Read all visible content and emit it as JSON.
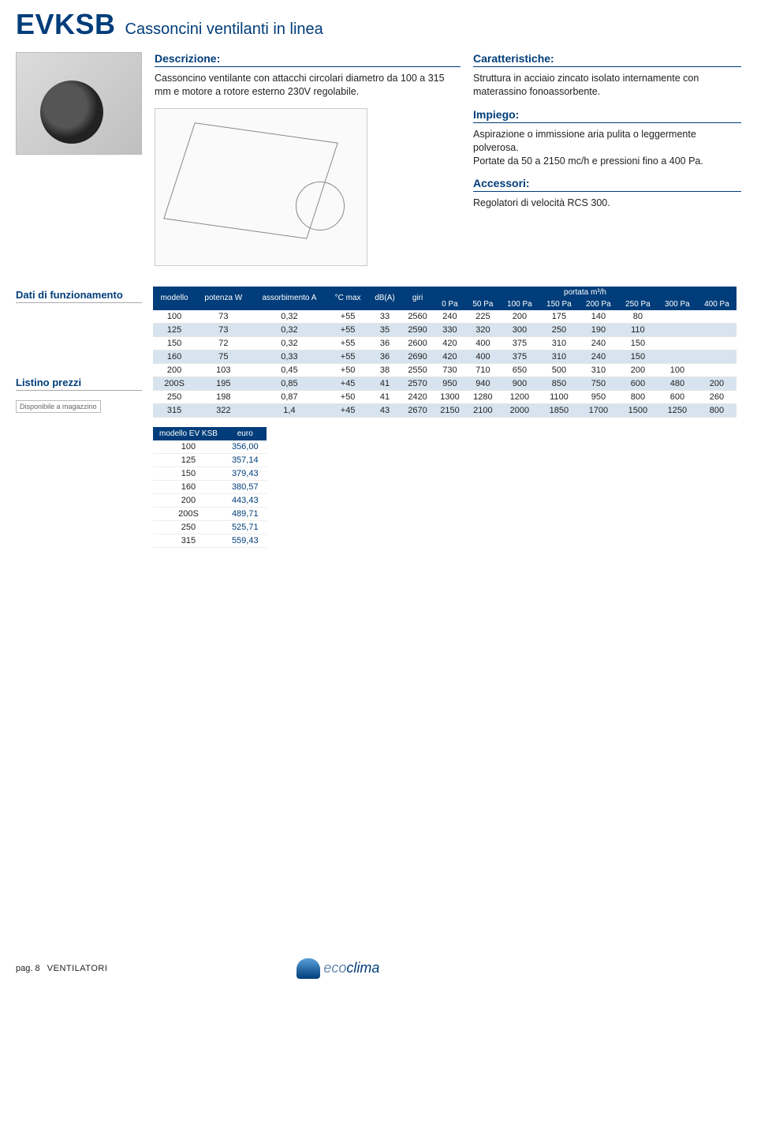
{
  "header": {
    "code": "EVKSB",
    "name": "Cassoncini ventilanti in linea"
  },
  "descrizione": {
    "title": "Descrizione:",
    "body": "Cassoncino ventilante con attacchi circolari diametro da 100 a 315 mm e motore a rotore esterno 230V regolabile."
  },
  "caratteristiche": {
    "title": "Caratteristiche:",
    "body": "Struttura in acciaio zincato isolato internamente con materassino fonoassorbente."
  },
  "impiego": {
    "title": "Impiego:",
    "body": "Aspirazione o immissione aria pulita o leggermente polverosa.\nPortate da 50 a 2150 mc/h e pressioni fino a 400 Pa."
  },
  "accessori": {
    "title": "Accessori:",
    "body": "Regolatori di velocità RCS 300."
  },
  "dati_heading": "Dati di funzionamento",
  "listino_heading": "Listino prezzi",
  "avail_label": "Disponibile a magazzino",
  "table1": {
    "head_top": [
      "modello",
      "potenza W",
      "assorbimento A",
      "°C max",
      "dB(A)",
      "giri",
      "portata m³/h"
    ],
    "head_portata": [
      "0 Pa",
      "50 Pa",
      "100 Pa",
      "150 Pa",
      "200 Pa",
      "250 Pa",
      "300 Pa",
      "400 Pa"
    ],
    "rows": [
      [
        "100",
        "73",
        "0,32",
        "+55",
        "33",
        "2560",
        "240",
        "225",
        "200",
        "175",
        "140",
        "80",
        "",
        ""
      ],
      [
        "125",
        "73",
        "0,32",
        "+55",
        "35",
        "2590",
        "330",
        "320",
        "300",
        "250",
        "190",
        "110",
        "",
        ""
      ],
      [
        "150",
        "72",
        "0,32",
        "+55",
        "36",
        "2600",
        "420",
        "400",
        "375",
        "310",
        "240",
        "150",
        "",
        ""
      ],
      [
        "160",
        "75",
        "0,33",
        "+55",
        "36",
        "2690",
        "420",
        "400",
        "375",
        "310",
        "240",
        "150",
        "",
        ""
      ],
      [
        "200",
        "103",
        "0,45",
        "+50",
        "38",
        "2550",
        "730",
        "710",
        "650",
        "500",
        "310",
        "200",
        "100",
        ""
      ],
      [
        "200S",
        "195",
        "0,85",
        "+45",
        "41",
        "2570",
        "950",
        "940",
        "900",
        "850",
        "750",
        "600",
        "480",
        "200"
      ],
      [
        "250",
        "198",
        "0,87",
        "+50",
        "41",
        "2420",
        "1300",
        "1280",
        "1200",
        "1100",
        "950",
        "800",
        "600",
        "260"
      ],
      [
        "315",
        "322",
        "1,4",
        "+45",
        "43",
        "2670",
        "2150",
        "2100",
        "2000",
        "1850",
        "1700",
        "1500",
        "1250",
        "800"
      ]
    ]
  },
  "table2": {
    "head": [
      "modello EV KSB",
      "euro"
    ],
    "rows": [
      [
        "100",
        "356,00"
      ],
      [
        "125",
        "357,14"
      ],
      [
        "150",
        "379,43"
      ],
      [
        "160",
        "380,57"
      ],
      [
        "200",
        "443,43"
      ],
      [
        "200S",
        "489,71"
      ],
      [
        "250",
        "525,71"
      ],
      [
        "315",
        "559,43"
      ]
    ]
  },
  "footer": {
    "page": "pag. 8",
    "section": "VENTILATORI",
    "brand_pre": "eco",
    "brand_post": "clima"
  },
  "colors": {
    "brand_blue": "#003d7a",
    "row_alt": "#d7e4ef"
  }
}
